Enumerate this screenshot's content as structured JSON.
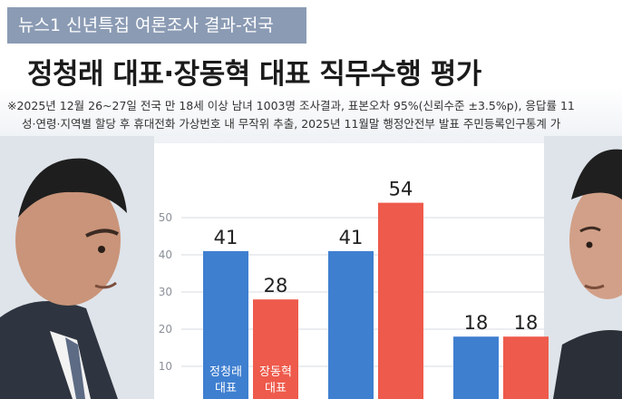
{
  "header": {
    "tag": "뉴스1 신년특집 여론조사 결과-전국",
    "title": "정청래 대표·장동혁 대표 직무수행 평가",
    "note_line1": "※2025년 12월 26~27일 전국 만 18세 이상 남녀 1003명 조사결과, 표본오차 95%(신뢰수준 ±3.5%p), 응답률  11",
    "note_line2": "성·연령·지역별 할당 후 휴대전화 가상번호 내 무작위 추출,  2025년 11월말 행정안전부 발표 주민등록인구통계 가"
  },
  "colors": {
    "blue": "#3f7fd0",
    "red": "#ee5a4b",
    "tag_bg": "#8b9bb4"
  },
  "icons": {
    "left": "person-portrait-left",
    "right": "person-portrait-right"
  },
  "chart_data": {
    "type": "bar",
    "categories": [
      "",
      "",
      ""
    ],
    "series": [
      {
        "name": "정청래 대표",
        "values": [
          41,
          41,
          18
        ]
      },
      {
        "name": "장동혁 대표",
        "values": [
          28,
          54,
          18
        ]
      }
    ],
    "series_label_lines": [
      [
        "정청래",
        "대표"
      ],
      [
        "장동혁",
        "대표"
      ]
    ],
    "yticks": [
      10,
      20,
      30,
      40,
      50
    ],
    "ylim": [
      0,
      60
    ]
  }
}
